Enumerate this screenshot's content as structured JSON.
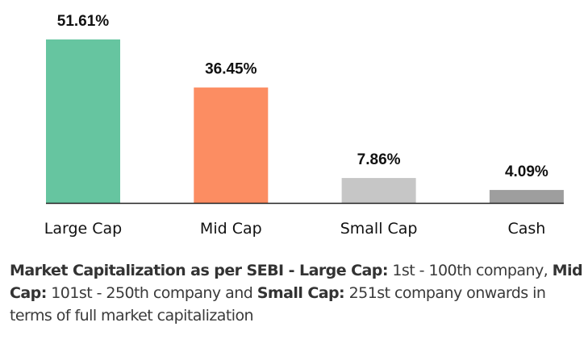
{
  "chart_data": {
    "type": "bar",
    "title": "",
    "xlabel": "",
    "ylabel": "",
    "categories": [
      "Large Cap",
      "Mid Cap",
      "Small Cap",
      "Cash"
    ],
    "values": [
      51.61,
      36.45,
      7.86,
      4.09
    ],
    "value_labels": [
      "51.61%",
      "36.45%",
      "7.86%",
      "4.09%"
    ],
    "colors": [
      "#66c5a0",
      "#fc8d62",
      "#c6c6c6",
      "#9e9e9e"
    ],
    "ylim": [
      0,
      52
    ],
    "grid": false,
    "legend": "none"
  },
  "footnote": {
    "segments": [
      {
        "text": "Market Capitalization as per SEBI - Large Cap:",
        "bold": true
      },
      {
        "text": " 1st - 100th company, ",
        "bold": false
      },
      {
        "text": "Mid Cap:",
        "bold": true
      },
      {
        "text": " 101st - 250th company and ",
        "bold": false
      },
      {
        "text": "Small Cap:",
        "bold": true
      },
      {
        "text": " 251st company onwards in terms of full market capitalization",
        "bold": false
      }
    ]
  }
}
